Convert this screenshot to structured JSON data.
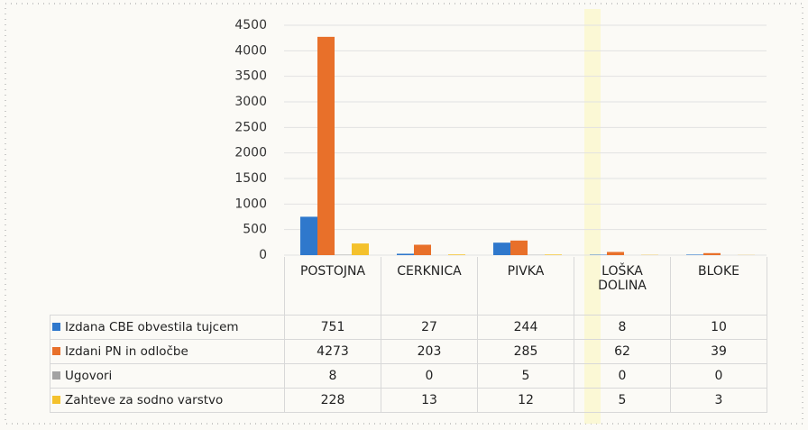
{
  "chart_data": {
    "type": "bar",
    "categories": [
      "POSTOJNA",
      "CERKNICA",
      "PIVKA",
      "LOŠKA DOLINA",
      "BLOKE"
    ],
    "series": [
      {
        "name": "Izdana CBE obvestila tujcem",
        "color": "#2f78cc",
        "values": [
          751,
          27,
          244,
          8,
          10
        ]
      },
      {
        "name": "Izdani PN in odločbe",
        "color": "#e8702a",
        "values": [
          4273,
          203,
          285,
          62,
          39
        ]
      },
      {
        "name": "Ugovori",
        "color": "#a3a3a3",
        "values": [
          8,
          0,
          5,
          0,
          0
        ]
      },
      {
        "name": "Zahteve za sodno varstvo",
        "color": "#f4c12c",
        "values": [
          228,
          13,
          12,
          5,
          3
        ]
      }
    ],
    "ylim": [
      0,
      4500
    ],
    "yticks": [
      0,
      500,
      1000,
      1500,
      2000,
      2500,
      3000,
      3500,
      4000,
      4500
    ],
    "grid": true
  }
}
